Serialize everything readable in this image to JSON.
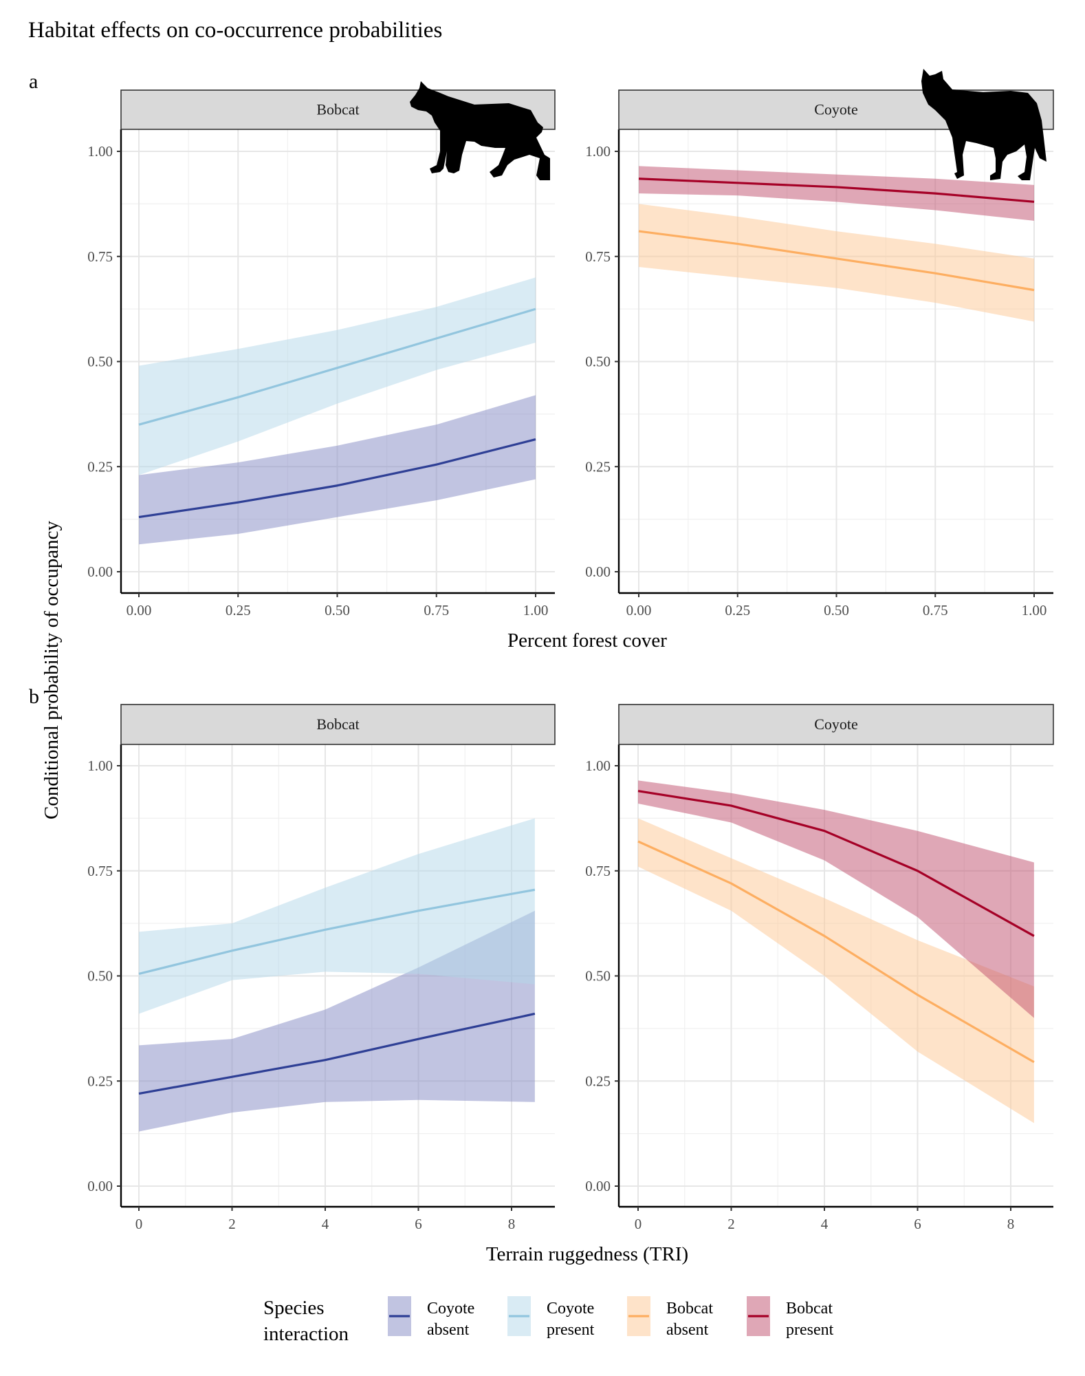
{
  "title": "Habitat effects on co-occurrence probabilities",
  "ylabel": "Conditional probability of occupancy",
  "legend": {
    "title": "Species interaction",
    "items": [
      {
        "label": "Coyote absent",
        "line": "#2e3f95",
        "fill": "#8389c3"
      },
      {
        "label": "Coyote present",
        "line": "#92c5de",
        "fill": "#b3d7ea"
      },
      {
        "label": "Bobcat absent",
        "line": "#fdae61",
        "fill": "#fdc793"
      },
      {
        "label": "Bobcat present",
        "line": "#a50026",
        "fill": "#c0506d"
      }
    ]
  },
  "icons": {
    "bobcat": "bobcat-silhouette-icon",
    "coyote": "coyote-silhouette-icon"
  },
  "chart_data": [
    {
      "type": "line",
      "panel_label": "a",
      "xlabel": "Percent forest cover",
      "xlim": [
        0,
        1
      ],
      "xticks": [
        0,
        0.25,
        0.5,
        0.75,
        1
      ],
      "xtick_labels": [
        "0.00",
        "0.25",
        "0.50",
        "0.75",
        "1.00"
      ],
      "ylim": [
        0,
        1
      ],
      "yticks": [
        0,
        0.25,
        0.5,
        0.75,
        1
      ],
      "ytick_labels": [
        "0.00",
        "0.25",
        "0.50",
        "0.75",
        "1.00"
      ],
      "grid": true,
      "facets": [
        {
          "strip": "Bobcat",
          "series": [
            {
              "name": "Coyote absent",
              "x": [
                0,
                0.25,
                0.5,
                0.75,
                1
              ],
              "y": [
                0.13,
                0.165,
                0.205,
                0.255,
                0.315
              ],
              "lower": [
                0.065,
                0.09,
                0.13,
                0.17,
                0.22
              ],
              "upper": [
                0.23,
                0.26,
                0.3,
                0.35,
                0.42
              ]
            },
            {
              "name": "Coyote present",
              "x": [
                0,
                0.25,
                0.5,
                0.75,
                1
              ],
              "y": [
                0.35,
                0.415,
                0.485,
                0.555,
                0.625
              ],
              "lower": [
                0.23,
                0.31,
                0.4,
                0.48,
                0.545
              ],
              "upper": [
                0.49,
                0.53,
                0.575,
                0.63,
                0.7
              ]
            }
          ]
        },
        {
          "strip": "Coyote",
          "series": [
            {
              "name": "Bobcat absent",
              "x": [
                0,
                0.25,
                0.5,
                0.75,
                1
              ],
              "y": [
                0.81,
                0.78,
                0.745,
                0.71,
                0.67
              ],
              "lower": [
                0.725,
                0.7,
                0.675,
                0.64,
                0.595
              ],
              "upper": [
                0.875,
                0.845,
                0.81,
                0.78,
                0.745
              ]
            },
            {
              "name": "Bobcat present",
              "x": [
                0,
                0.25,
                0.5,
                0.75,
                1
              ],
              "y": [
                0.935,
                0.925,
                0.915,
                0.9,
                0.88
              ],
              "lower": [
                0.9,
                0.895,
                0.88,
                0.86,
                0.835
              ],
              "upper": [
                0.965,
                0.955,
                0.945,
                0.935,
                0.92
              ]
            }
          ]
        }
      ]
    },
    {
      "type": "line",
      "panel_label": "b",
      "xlabel": "Terrain ruggedness (TRI)",
      "xlim": [
        0,
        8.5
      ],
      "xticks": [
        0,
        2,
        4,
        6,
        8
      ],
      "xtick_labels": [
        "0",
        "2",
        "4",
        "6",
        "8"
      ],
      "ylim": [
        0,
        1
      ],
      "yticks": [
        0,
        0.25,
        0.5,
        0.75,
        1
      ],
      "ytick_labels": [
        "0.00",
        "0.25",
        "0.50",
        "0.75",
        "1.00"
      ],
      "grid": true,
      "facets": [
        {
          "strip": "Bobcat",
          "series": [
            {
              "name": "Coyote absent",
              "x": [
                0,
                2,
                4,
                6,
                8.5
              ],
              "y": [
                0.22,
                0.26,
                0.3,
                0.35,
                0.41
              ],
              "lower": [
                0.13,
                0.175,
                0.2,
                0.205,
                0.2
              ],
              "upper": [
                0.335,
                0.35,
                0.42,
                0.52,
                0.655
              ]
            },
            {
              "name": "Coyote present",
              "x": [
                0,
                2,
                4,
                6,
                8.5
              ],
              "y": [
                0.505,
                0.56,
                0.61,
                0.655,
                0.705
              ],
              "lower": [
                0.41,
                0.49,
                0.51,
                0.505,
                0.48
              ],
              "upper": [
                0.605,
                0.625,
                0.71,
                0.79,
                0.875
              ]
            }
          ]
        },
        {
          "strip": "Coyote",
          "series": [
            {
              "name": "Bobcat absent",
              "x": [
                0,
                2,
                4,
                6,
                8.5
              ],
              "y": [
                0.82,
                0.72,
                0.595,
                0.455,
                0.295
              ],
              "lower": [
                0.76,
                0.655,
                0.5,
                0.32,
                0.15
              ],
              "upper": [
                0.875,
                0.78,
                0.685,
                0.585,
                0.475
              ]
            },
            {
              "name": "Bobcat present",
              "x": [
                0,
                2,
                4,
                6,
                8.5
              ],
              "y": [
                0.94,
                0.905,
                0.845,
                0.75,
                0.595
              ],
              "lower": [
                0.91,
                0.865,
                0.775,
                0.64,
                0.4
              ],
              "upper": [
                0.965,
                0.935,
                0.895,
                0.845,
                0.77
              ]
            }
          ]
        }
      ]
    }
  ]
}
